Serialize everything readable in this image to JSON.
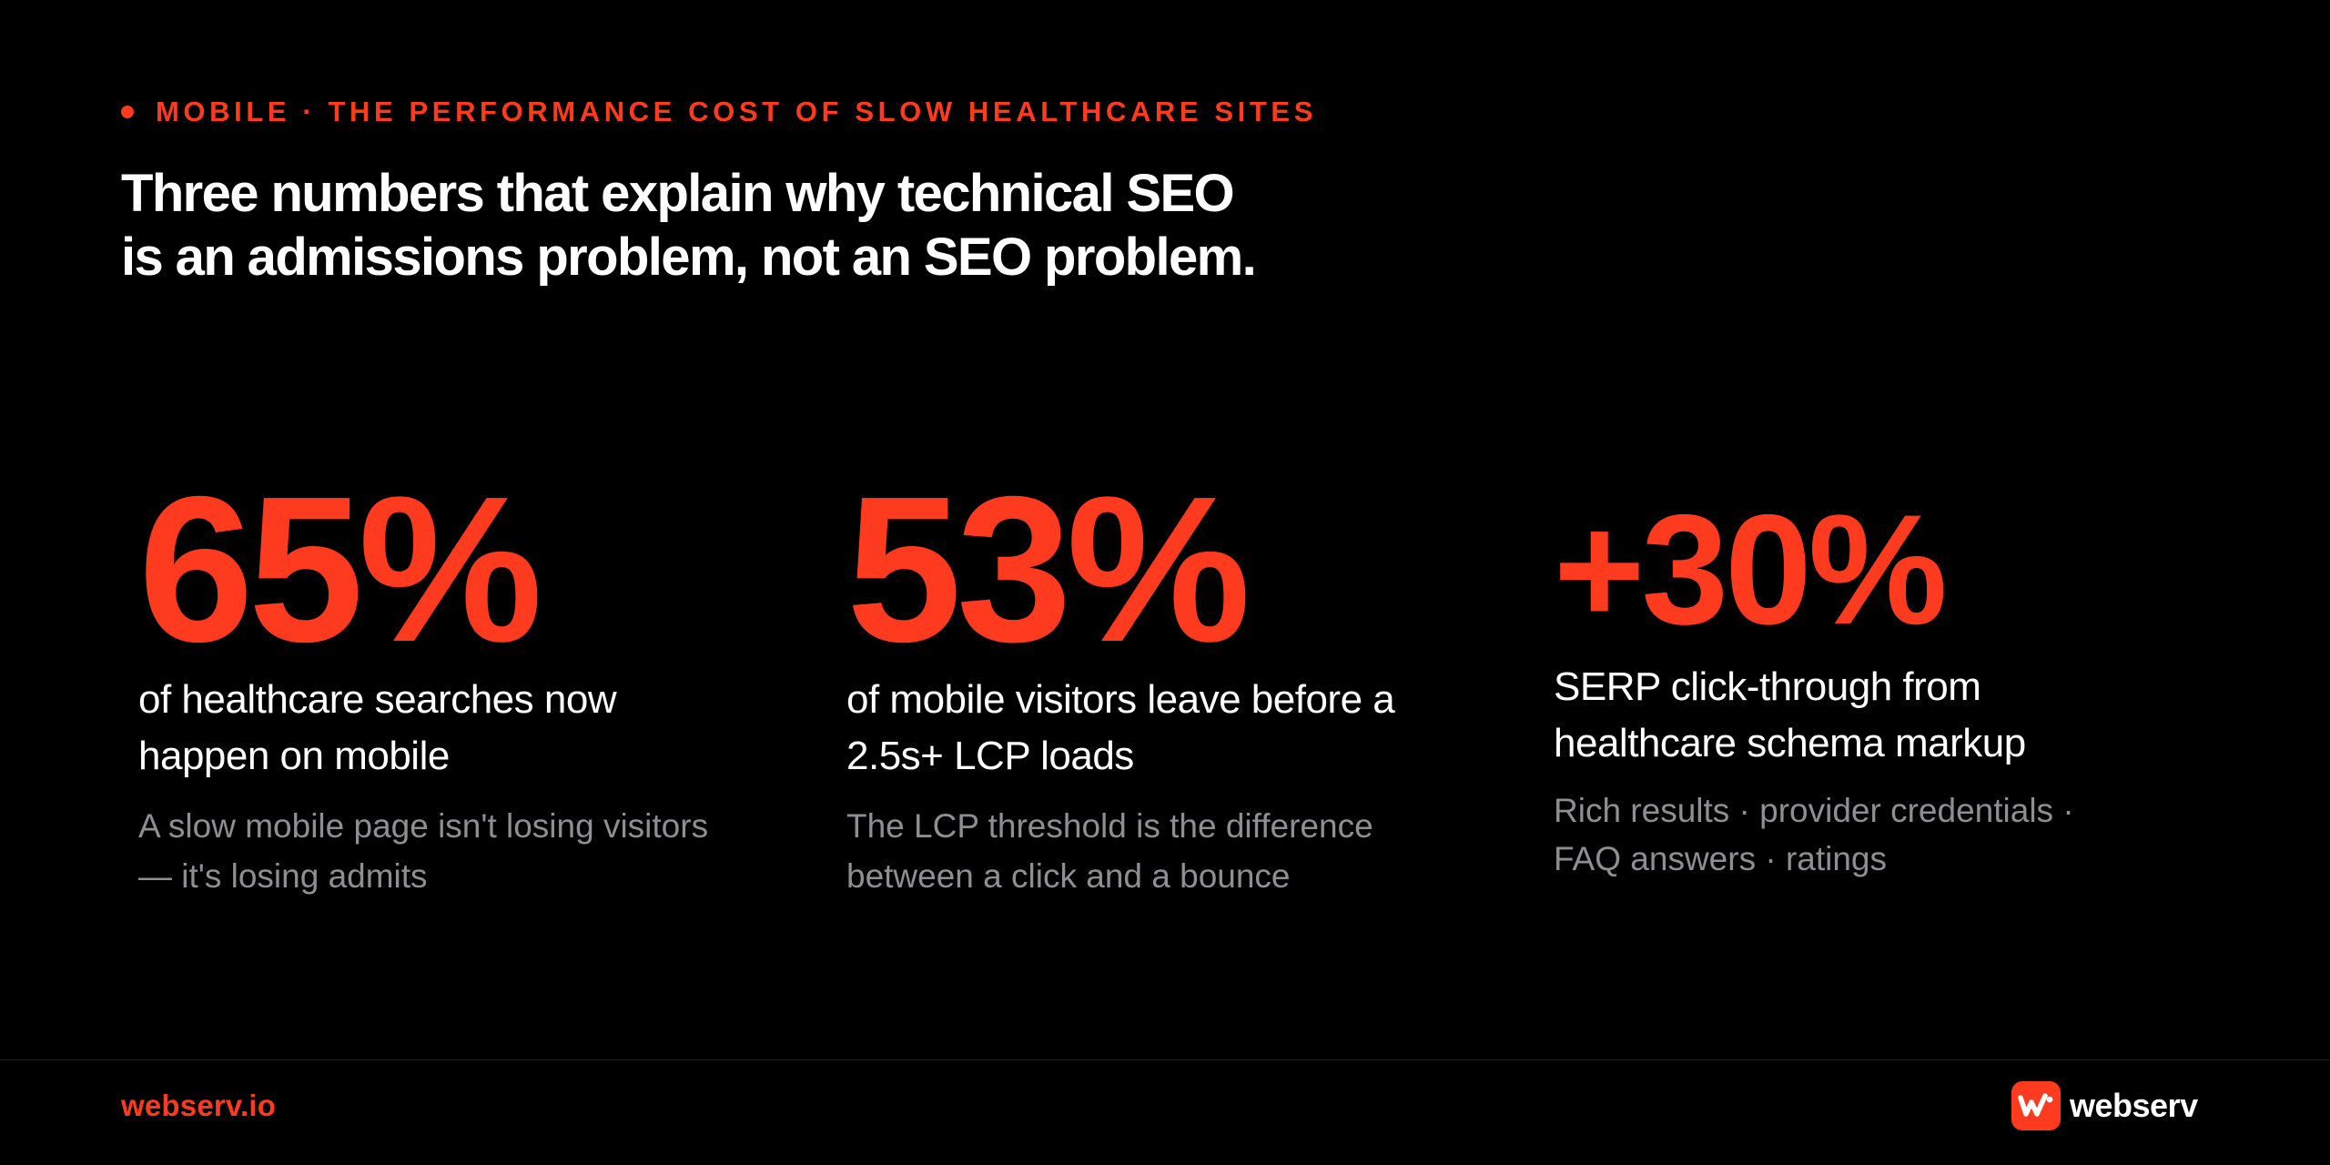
{
  "eyebrow": "MOBILE · THE PERFORMANCE COST OF SLOW HEALTHCARE SITES",
  "headline": {
    "line1": "Three numbers that explain why technical SEO",
    "line2": "is an admissions problem, not an SEO problem."
  },
  "stats": [
    {
      "value": "65%",
      "label": [
        "of healthcare searches now",
        "happen on mobile"
      ],
      "note": [
        "A slow mobile page isn't losing visitors",
        "— it's losing admits"
      ]
    },
    {
      "value": "53%",
      "label": [
        "of mobile visitors leave before a",
        "2.5s+ LCP loads"
      ],
      "note": [
        "The LCP threshold is the difference",
        "between a click and a bounce"
      ]
    },
    {
      "value": "+30%",
      "label": [
        "SERP click-through from",
        "healthcare schema markup"
      ],
      "note": [
        "Rich results · provider credentials ·",
        "FAQ answers · ratings"
      ]
    }
  ],
  "footer": {
    "site": "webserv.io",
    "brand_name": "webserv",
    "brand_icon": "webserv-logo-icon"
  },
  "colors": {
    "accent": "#ff3b1f",
    "background": "#000000",
    "text": "#ffffff",
    "muted": "#8e8e93"
  }
}
